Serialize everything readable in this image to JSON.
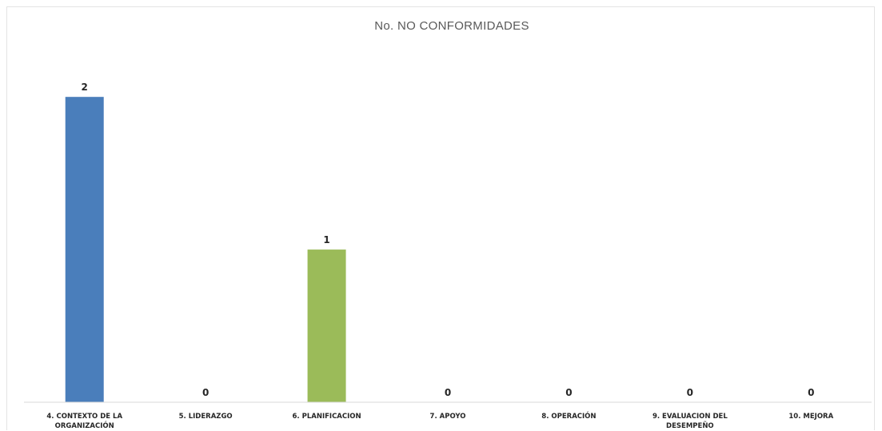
{
  "chart_data": {
    "type": "bar",
    "title": "No. NO CONFORMIDADES",
    "xlabel": "",
    "ylabel": "",
    "categories": [
      [
        "4. CONTEXTO DE LA",
        "ORGANIZACIÓN"
      ],
      [
        "5. LIDERAZGO"
      ],
      [
        "6. PLANIFICACION"
      ],
      [
        "7. APOYO"
      ],
      [
        "8. OPERACIÓN"
      ],
      [
        "9. EVALUACION DEL",
        "DESEMPEÑO"
      ],
      [
        "10. MEJORA"
      ]
    ],
    "values": [
      2,
      0,
      1,
      0,
      0,
      0,
      0
    ],
    "colors": [
      "#4a7ebb",
      "#4a7ebb",
      "#9bbb59",
      "#4a7ebb",
      "#4a7ebb",
      "#4a7ebb",
      "#4a7ebb"
    ],
    "ylim": [
      0,
      2.2
    ],
    "grid": false,
    "legend": "none",
    "axis_color": "#d9d9d9"
  }
}
